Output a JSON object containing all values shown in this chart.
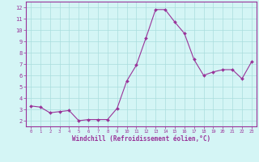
{
  "x": [
    0,
    1,
    2,
    3,
    4,
    5,
    6,
    7,
    8,
    9,
    10,
    11,
    12,
    13,
    14,
    15,
    16,
    17,
    18,
    19,
    20,
    21,
    22,
    23
  ],
  "y": [
    3.3,
    3.2,
    2.7,
    2.8,
    2.9,
    2.0,
    2.1,
    2.1,
    2.1,
    3.1,
    5.5,
    6.9,
    9.3,
    11.8,
    11.8,
    10.7,
    9.7,
    7.4,
    6.0,
    6.3,
    6.5,
    6.5,
    5.7,
    7.2
  ],
  "line_color": "#993399",
  "marker_color": "#993399",
  "bg_color": "#d4f5f5",
  "grid_color": "#aadddd",
  "xlabel": "Windchill (Refroidissement éolien,°C)",
  "xlabel_color": "#993399",
  "tick_color": "#993399",
  "spine_color": "#993399",
  "ylim": [
    1.5,
    12.5
  ],
  "xlim": [
    -0.5,
    23.5
  ],
  "yticks": [
    2,
    3,
    4,
    5,
    6,
    7,
    8,
    9,
    10,
    11,
    12
  ],
  "xticks": [
    0,
    1,
    2,
    3,
    4,
    5,
    6,
    7,
    8,
    9,
    10,
    11,
    12,
    13,
    14,
    15,
    16,
    17,
    18,
    19,
    20,
    21,
    22,
    23
  ]
}
